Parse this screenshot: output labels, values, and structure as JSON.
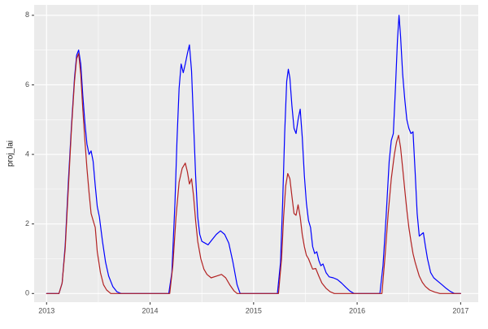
{
  "chart_data": {
    "type": "line",
    "title": "",
    "xlabel": "",
    "ylabel": "proj_lai",
    "legend": "none",
    "grid": true,
    "x_ticks": [
      2013,
      2014,
      2015,
      2016,
      2017
    ],
    "x_minor_ticks": [
      2013.5,
      2014.5,
      2015.5,
      2016.5
    ],
    "y_ticks": [
      0,
      2,
      4,
      6,
      8
    ],
    "y_minor_ticks": [
      1,
      3,
      5,
      7
    ],
    "xlim": [
      2012.88,
      2017.17
    ],
    "ylim": [
      -0.25,
      8.3
    ],
    "colors": {
      "figure_bg": "#ffffff",
      "panel_bg": "#ebebeb",
      "grid_major": "#ffffff",
      "grid_minor": "#ffffff",
      "tick_mark": "#333333",
      "tick_label": "#4d4d4d",
      "axis_title": "#1a1a1a"
    },
    "series": [
      {
        "name": "blue-series",
        "color": "#0000ff",
        "points": [
          [
            2013.0,
            0
          ],
          [
            2013.12,
            0
          ],
          [
            2013.15,
            0.3
          ],
          [
            2013.18,
            1.4
          ],
          [
            2013.21,
            3.2
          ],
          [
            2013.24,
            4.8
          ],
          [
            2013.27,
            6.2
          ],
          [
            2013.29,
            6.85
          ],
          [
            2013.31,
            7.0
          ],
          [
            2013.33,
            6.6
          ],
          [
            2013.35,
            5.7
          ],
          [
            2013.37,
            4.9
          ],
          [
            2013.39,
            4.3
          ],
          [
            2013.41,
            4.0
          ],
          [
            2013.43,
            4.1
          ],
          [
            2013.45,
            3.8
          ],
          [
            2013.47,
            3.1
          ],
          [
            2013.49,
            2.5
          ],
          [
            2013.51,
            2.2
          ],
          [
            2013.54,
            1.5
          ],
          [
            2013.57,
            0.9
          ],
          [
            2013.6,
            0.5
          ],
          [
            2013.64,
            0.2
          ],
          [
            2013.68,
            0.05
          ],
          [
            2013.72,
            0
          ],
          [
            2014.18,
            0
          ],
          [
            2014.21,
            0.6
          ],
          [
            2014.24,
            2.6
          ],
          [
            2014.26,
            4.4
          ],
          [
            2014.28,
            5.9
          ],
          [
            2014.3,
            6.6
          ],
          [
            2014.32,
            6.35
          ],
          [
            2014.34,
            6.6
          ],
          [
            2014.36,
            6.9
          ],
          [
            2014.38,
            7.15
          ],
          [
            2014.4,
            6.4
          ],
          [
            2014.42,
            4.9
          ],
          [
            2014.44,
            3.4
          ],
          [
            2014.46,
            2.2
          ],
          [
            2014.48,
            1.7
          ],
          [
            2014.5,
            1.5
          ],
          [
            2014.53,
            1.45
          ],
          [
            2014.56,
            1.4
          ],
          [
            2014.6,
            1.55
          ],
          [
            2014.64,
            1.7
          ],
          [
            2014.68,
            1.8
          ],
          [
            2014.72,
            1.7
          ],
          [
            2014.76,
            1.45
          ],
          [
            2014.8,
            0.9
          ],
          [
            2014.84,
            0.25
          ],
          [
            2014.87,
            0
          ],
          [
            2015.23,
            0
          ],
          [
            2015.26,
            0.9
          ],
          [
            2015.28,
            2.6
          ],
          [
            2015.3,
            4.6
          ],
          [
            2015.32,
            6.1
          ],
          [
            2015.335,
            6.45
          ],
          [
            2015.35,
            6.2
          ],
          [
            2015.37,
            5.4
          ],
          [
            2015.39,
            4.75
          ],
          [
            2015.41,
            4.6
          ],
          [
            2015.43,
            5.0
          ],
          [
            2015.45,
            5.3
          ],
          [
            2015.47,
            4.5
          ],
          [
            2015.49,
            3.4
          ],
          [
            2015.51,
            2.6
          ],
          [
            2015.53,
            2.1
          ],
          [
            2015.55,
            1.9
          ],
          [
            2015.57,
            1.35
          ],
          [
            2015.59,
            1.15
          ],
          [
            2015.61,
            1.2
          ],
          [
            2015.63,
            0.95
          ],
          [
            2015.65,
            0.8
          ],
          [
            2015.67,
            0.85
          ],
          [
            2015.7,
            0.6
          ],
          [
            2015.73,
            0.48
          ],
          [
            2015.77,
            0.45
          ],
          [
            2015.81,
            0.4
          ],
          [
            2015.85,
            0.3
          ],
          [
            2015.89,
            0.18
          ],
          [
            2015.93,
            0.07
          ],
          [
            2015.97,
            0
          ],
          [
            2016.22,
            0
          ],
          [
            2016.25,
            0.8
          ],
          [
            2016.28,
            2.2
          ],
          [
            2016.31,
            3.8
          ],
          [
            2016.33,
            4.4
          ],
          [
            2016.35,
            4.6
          ],
          [
            2016.37,
            5.9
          ],
          [
            2016.39,
            7.3
          ],
          [
            2016.405,
            8.0
          ],
          [
            2016.42,
            7.4
          ],
          [
            2016.44,
            6.3
          ],
          [
            2016.46,
            5.6
          ],
          [
            2016.48,
            5.0
          ],
          [
            2016.5,
            4.75
          ],
          [
            2016.52,
            4.6
          ],
          [
            2016.54,
            4.65
          ],
          [
            2016.56,
            3.5
          ],
          [
            2016.58,
            2.3
          ],
          [
            2016.6,
            1.65
          ],
          [
            2016.62,
            1.7
          ],
          [
            2016.64,
            1.75
          ],
          [
            2016.66,
            1.35
          ],
          [
            2016.68,
            1.0
          ],
          [
            2016.71,
            0.6
          ],
          [
            2016.74,
            0.45
          ],
          [
            2016.78,
            0.35
          ],
          [
            2016.82,
            0.25
          ],
          [
            2016.86,
            0.15
          ],
          [
            2016.9,
            0.06
          ],
          [
            2016.94,
            0
          ],
          [
            2017.0,
            0
          ]
        ]
      },
      {
        "name": "red-series",
        "color": "#b22222",
        "points": [
          [
            2013.0,
            0
          ],
          [
            2013.12,
            0
          ],
          [
            2013.15,
            0.3
          ],
          [
            2013.18,
            1.3
          ],
          [
            2013.21,
            3.0
          ],
          [
            2013.24,
            4.7
          ],
          [
            2013.27,
            6.1
          ],
          [
            2013.29,
            6.75
          ],
          [
            2013.31,
            6.9
          ],
          [
            2013.33,
            6.3
          ],
          [
            2013.35,
            5.3
          ],
          [
            2013.37,
            4.4
          ],
          [
            2013.39,
            3.6
          ],
          [
            2013.41,
            2.9
          ],
          [
            2013.43,
            2.3
          ],
          [
            2013.45,
            2.1
          ],
          [
            2013.47,
            1.9
          ],
          [
            2013.49,
            1.2
          ],
          [
            2013.52,
            0.6
          ],
          [
            2013.55,
            0.25
          ],
          [
            2013.58,
            0.1
          ],
          [
            2013.62,
            0
          ],
          [
            2014.19,
            0
          ],
          [
            2014.22,
            0.8
          ],
          [
            2014.25,
            2.2
          ],
          [
            2014.28,
            3.2
          ],
          [
            2014.31,
            3.6
          ],
          [
            2014.34,
            3.75
          ],
          [
            2014.36,
            3.5
          ],
          [
            2014.38,
            3.15
          ],
          [
            2014.4,
            3.3
          ],
          [
            2014.42,
            2.8
          ],
          [
            2014.44,
            2.1
          ],
          [
            2014.46,
            1.5
          ],
          [
            2014.49,
            1.0
          ],
          [
            2014.52,
            0.7
          ],
          [
            2014.55,
            0.55
          ],
          [
            2014.59,
            0.45
          ],
          [
            2014.64,
            0.5
          ],
          [
            2014.69,
            0.55
          ],
          [
            2014.73,
            0.45
          ],
          [
            2014.77,
            0.25
          ],
          [
            2014.81,
            0.08
          ],
          [
            2014.84,
            0
          ],
          [
            2015.24,
            0
          ],
          [
            2015.27,
            1.0
          ],
          [
            2015.29,
            2.2
          ],
          [
            2015.31,
            3.1
          ],
          [
            2015.33,
            3.45
          ],
          [
            2015.35,
            3.3
          ],
          [
            2015.37,
            2.8
          ],
          [
            2015.39,
            2.3
          ],
          [
            2015.41,
            2.25
          ],
          [
            2015.43,
            2.55
          ],
          [
            2015.45,
            2.2
          ],
          [
            2015.47,
            1.7
          ],
          [
            2015.49,
            1.35
          ],
          [
            2015.51,
            1.1
          ],
          [
            2015.53,
            1.0
          ],
          [
            2015.55,
            0.85
          ],
          [
            2015.57,
            0.7
          ],
          [
            2015.6,
            0.72
          ],
          [
            2015.63,
            0.5
          ],
          [
            2015.66,
            0.3
          ],
          [
            2015.7,
            0.15
          ],
          [
            2015.74,
            0.05
          ],
          [
            2015.78,
            0
          ],
          [
            2016.24,
            0
          ],
          [
            2016.27,
            1.1
          ],
          [
            2016.3,
            2.3
          ],
          [
            2016.33,
            3.3
          ],
          [
            2016.36,
            4.0
          ],
          [
            2016.38,
            4.35
          ],
          [
            2016.4,
            4.55
          ],
          [
            2016.42,
            4.2
          ],
          [
            2016.44,
            3.6
          ],
          [
            2016.46,
            3.0
          ],
          [
            2016.48,
            2.4
          ],
          [
            2016.5,
            1.9
          ],
          [
            2016.52,
            1.5
          ],
          [
            2016.54,
            1.15
          ],
          [
            2016.56,
            0.9
          ],
          [
            2016.58,
            0.7
          ],
          [
            2016.6,
            0.5
          ],
          [
            2016.63,
            0.32
          ],
          [
            2016.66,
            0.2
          ],
          [
            2016.7,
            0.1
          ],
          [
            2016.75,
            0.04
          ],
          [
            2016.8,
            0
          ],
          [
            2017.0,
            0
          ]
        ]
      }
    ]
  }
}
